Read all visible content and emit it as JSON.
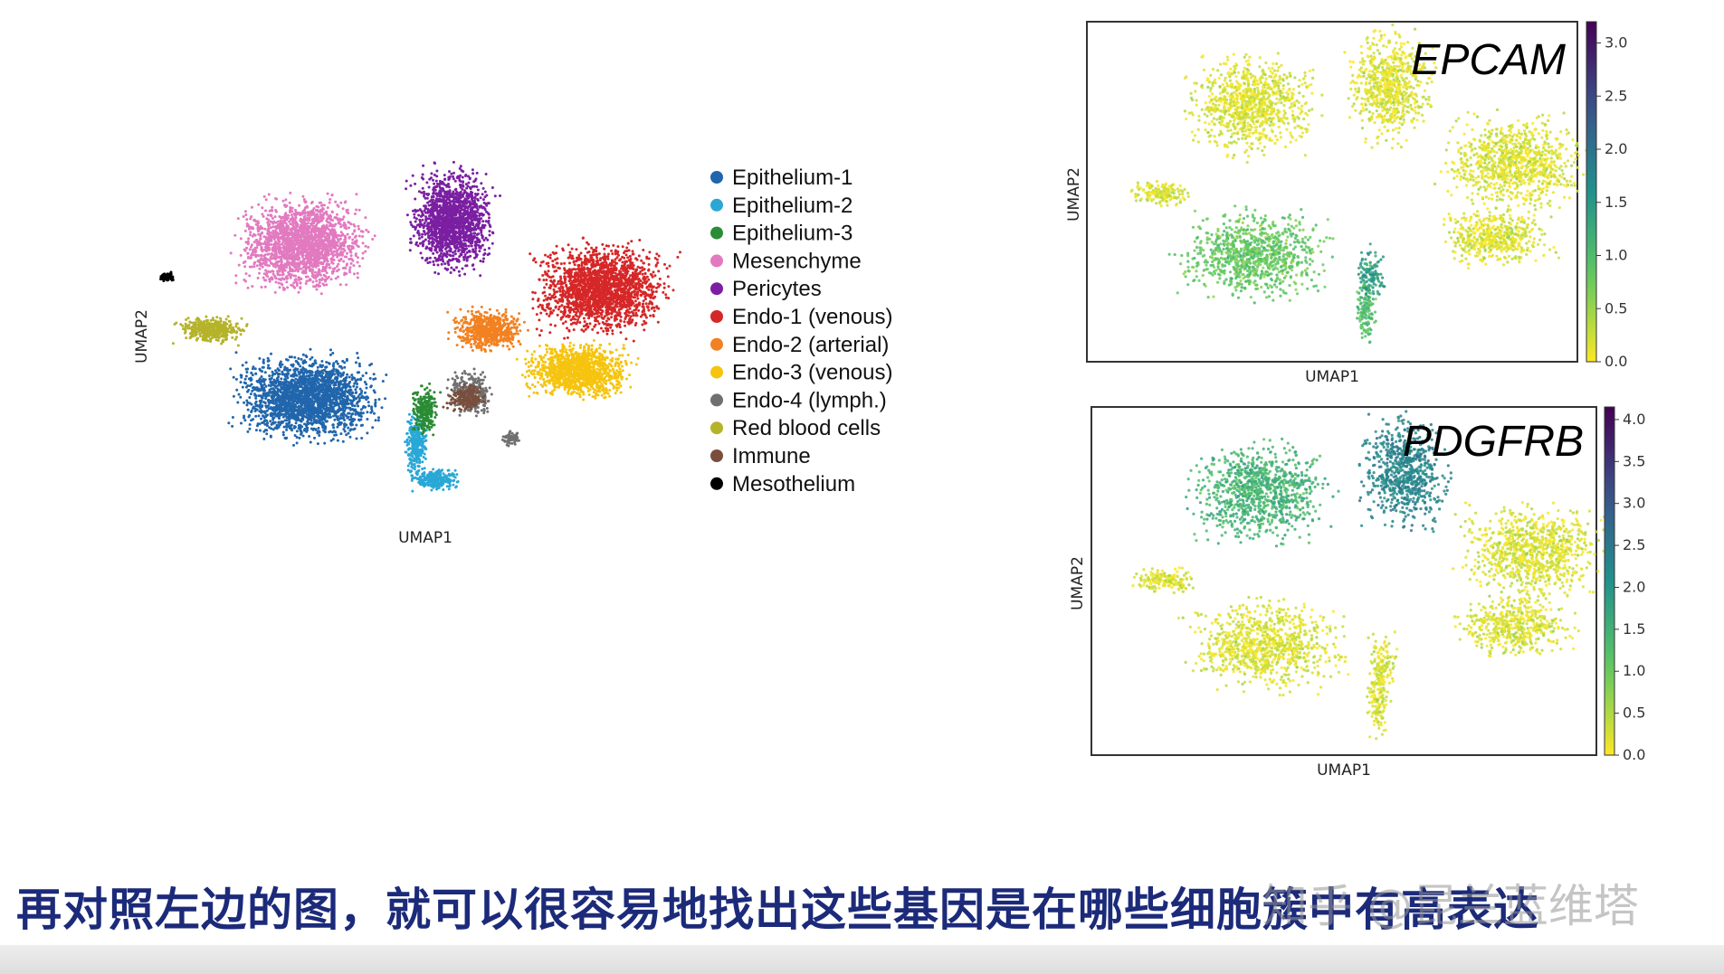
{
  "chart_data": [
    {
      "type": "scatter",
      "title": "",
      "xlabel": "UMAP1",
      "ylabel": "UMAP2",
      "legend_position": "right",
      "series": [
        {
          "name": "Epithelium-1",
          "color": "#2166ac"
        },
        {
          "name": "Epithelium-2",
          "color": "#29a8d6"
        },
        {
          "name": "Epithelium-3",
          "color": "#2a8c35"
        },
        {
          "name": "Mesenchyme",
          "color": "#e27ac0"
        },
        {
          "name": "Pericytes",
          "color": "#7b1fa2"
        },
        {
          "name": "Endo-1 (venous)",
          "color": "#d62728"
        },
        {
          "name": "Endo-2 (arterial)",
          "color": "#f28121"
        },
        {
          "name": "Endo-3 (venous)",
          "color": "#f6c40f"
        },
        {
          "name": "Endo-4 (lymph.)",
          "color": "#707070"
        },
        {
          "name": "Red blood cells",
          "color": "#b5b32a"
        },
        {
          "name": "Immune",
          "color": "#7a4e3c"
        },
        {
          "name": "Mesothelium",
          "color": "#000000"
        }
      ]
    },
    {
      "type": "scatter",
      "title": "EPCAM",
      "xlabel": "UMAP1",
      "ylabel": "UMAP2",
      "colorbar": {
        "min": 0.0,
        "max": 3.2,
        "ticks": [
          "0.0",
          "0.5",
          "1.0",
          "1.5",
          "2.0",
          "2.5",
          "3.0"
        ],
        "colormap": "viridis_r"
      }
    },
    {
      "type": "scatter",
      "title": "PDGFRB",
      "xlabel": "UMAP1",
      "ylabel": "UMAP2",
      "colorbar": {
        "min": 0.0,
        "max": 4.15,
        "ticks": [
          "0.0",
          "0.5",
          "1.0",
          "1.5",
          "2.0",
          "2.5",
          "3.0",
          "3.5",
          "4.0"
        ],
        "colormap": "viridis_r"
      }
    }
  ],
  "subtitle": "再对照左边的图，就可以很容易地找出这些基因是在哪些细胞簇中有高表达",
  "watermark": "知乎 @昆兰蓝维塔"
}
